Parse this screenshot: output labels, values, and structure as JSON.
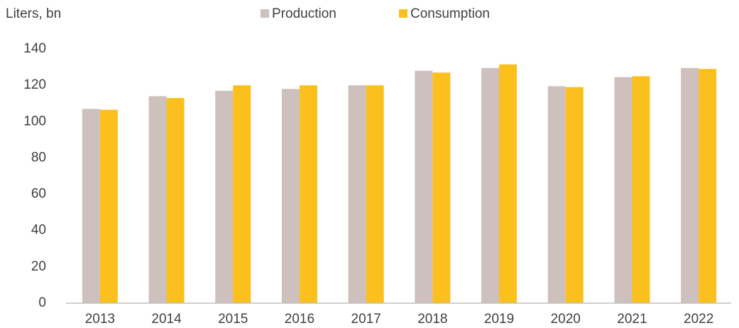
{
  "chart_data": {
    "type": "bar",
    "y_label": "Liters, bn",
    "categories": [
      "2013",
      "2014",
      "2015",
      "2016",
      "2017",
      "2018",
      "2019",
      "2020",
      "2021",
      "2022"
    ],
    "series": [
      {
        "name": "Production",
        "color": "#cdc0bd",
        "values": [
          107,
          114,
          117,
          118,
          120,
          128,
          129.5,
          119.5,
          124.5,
          129.5
        ]
      },
      {
        "name": "Consumption",
        "color": "#fbbf1e",
        "values": [
          106.5,
          113,
          120,
          120,
          120,
          127,
          131.5,
          119,
          125,
          129
        ]
      }
    ],
    "ylim": [
      0,
      140
    ],
    "yticks": [
      0,
      20,
      40,
      60,
      80,
      100,
      120,
      140
    ],
    "grid": false
  }
}
